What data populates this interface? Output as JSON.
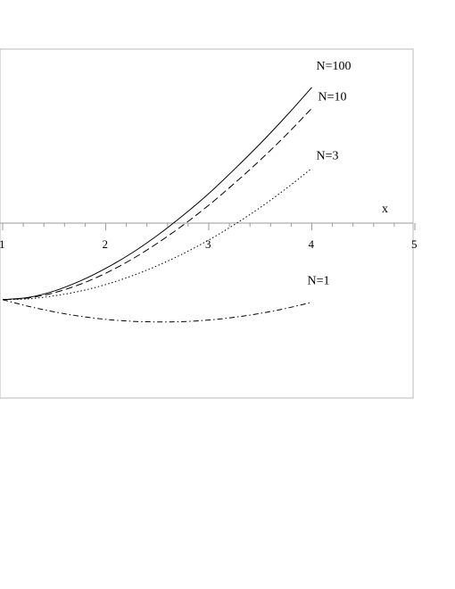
{
  "chart_data": {
    "type": "line",
    "xlabel": "x",
    "x_ticks": [
      "1",
      "2",
      "3",
      "4",
      "5"
    ],
    "xlim": [
      1,
      5
    ],
    "ylim": [
      -0.85,
      0.85
    ],
    "grid": false,
    "legend": "inline labels at line ends",
    "series": [
      {
        "name": "N=100",
        "style": "solid",
        "x": [
          1.0,
          1.25,
          1.5,
          1.75,
          2.0,
          2.25,
          2.5,
          2.75,
          3.0,
          3.25,
          3.5,
          3.75,
          4.0
        ],
        "y": [
          -0.44,
          -0.427,
          -0.39,
          -0.333,
          -0.26,
          -0.173,
          -0.071,
          0.044,
          0.17,
          0.31,
          0.457,
          0.614,
          0.78
        ]
      },
      {
        "name": "N=10",
        "style": "dashed",
        "x": [
          1.0,
          1.25,
          1.5,
          1.75,
          2.0,
          2.25,
          2.5,
          2.75,
          3.0,
          3.25,
          3.5,
          3.75,
          4.0
        ],
        "y": [
          -0.44,
          -0.43,
          -0.4,
          -0.352,
          -0.288,
          -0.209,
          -0.116,
          -0.012,
          0.103,
          0.229,
          0.363,
          0.506,
          0.66
        ]
      },
      {
        "name": "N=3",
        "style": "dotted",
        "x": [
          1.0,
          1.25,
          1.5,
          1.75,
          2.0,
          2.25,
          2.5,
          2.75,
          3.0,
          3.25,
          3.5,
          3.75,
          4.0
        ],
        "y": [
          -0.44,
          -0.435,
          -0.418,
          -0.391,
          -0.353,
          -0.304,
          -0.245,
          -0.176,
          -0.097,
          -0.008,
          0.09,
          0.198,
          0.315
        ]
      },
      {
        "name": "N=1",
        "style": "dashdot",
        "x": [
          1.0,
          1.25,
          1.5,
          1.75,
          2.0,
          2.25,
          2.5,
          2.75,
          3.0,
          3.25,
          3.5,
          3.75,
          4.0
        ],
        "y": [
          -0.44,
          -0.478,
          -0.51,
          -0.535,
          -0.553,
          -0.564,
          -0.568,
          -0.566,
          -0.557,
          -0.541,
          -0.519,
          -0.49,
          -0.455
        ]
      }
    ]
  }
}
